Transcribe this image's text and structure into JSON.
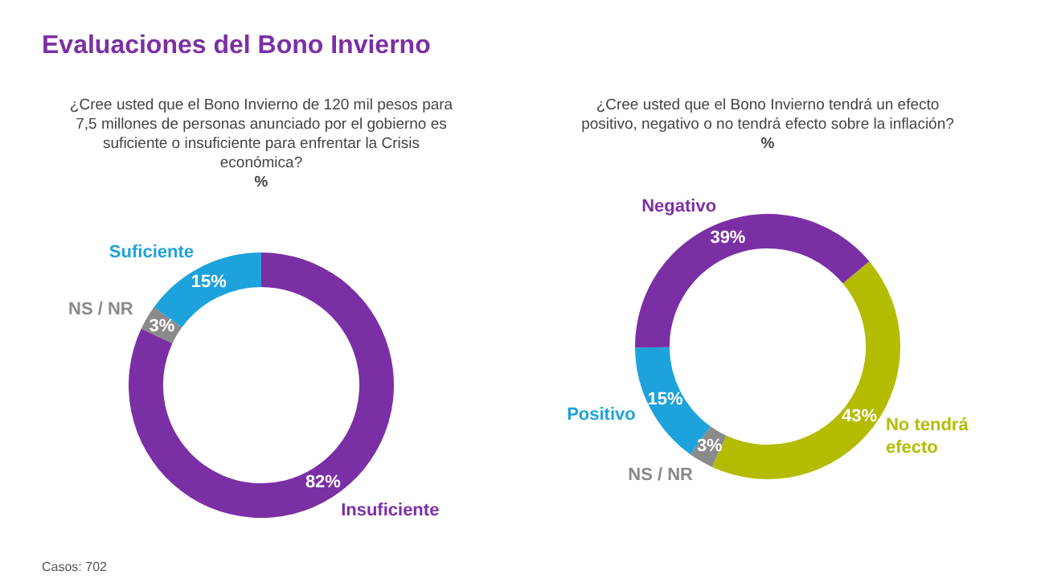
{
  "chart_data": [
    {
      "type": "donut",
      "title": "Evaluaciones del Bono Invierno",
      "subtitle": "¿Cree usted que el Bono Invierno de 120 mil pesos para 7,5 millones de personas anunciado por el gobierno es suficiente o insuficiente para enfrentar la Crisis económica?",
      "categories": [
        "Insuficiente",
        "NS / NR",
        "Suficiente"
      ],
      "values": [
        82,
        3,
        15
      ],
      "value_labels": [
        "82%",
        "3%",
        "15%"
      ],
      "colors": [
        "#7b2fa5",
        "#8a8a8a",
        "#1ea2dc"
      ],
      "legend": false,
      "annotations": [
        "%",
        "Casos: 702"
      ]
    },
    {
      "type": "donut",
      "subtitle": "¿Cree usted que el Bono Invierno tendrá un efecto positivo, negativo o no tendrá efecto sobre la inflación?",
      "categories": [
        "No tendrá efecto",
        "NS / NR",
        "Positivo",
        "Negativo"
      ],
      "values": [
        43,
        3,
        15,
        39
      ],
      "value_labels": [
        "43%",
        "3%",
        "15%",
        "39%"
      ],
      "colors": [
        "#b3bc00",
        "#8a8a8a",
        "#1ea2dc",
        "#7b2fa5"
      ],
      "legend": false,
      "annotations": [
        "%"
      ]
    }
  ]
}
